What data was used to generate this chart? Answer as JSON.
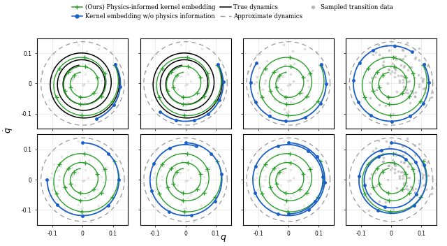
{
  "xlabel": "$q$",
  "ylabel": "$\\dot{q}$",
  "xlim": [
    -0.15,
    0.15
  ],
  "ylim": [
    -0.15,
    0.15
  ],
  "xticks": [
    -0.1,
    0,
    0.1
  ],
  "yticks": [
    -0.1,
    0,
    0.1
  ],
  "green_color": "#2ca02c",
  "blue_color": "#1a5fc8",
  "black_color": "#000000",
  "dashed_color": "#999999",
  "fig_width": 6.4,
  "fig_height": 3.52,
  "nrows": 2,
  "ncols": 4,
  "dashed_circle_r": 0.138
}
